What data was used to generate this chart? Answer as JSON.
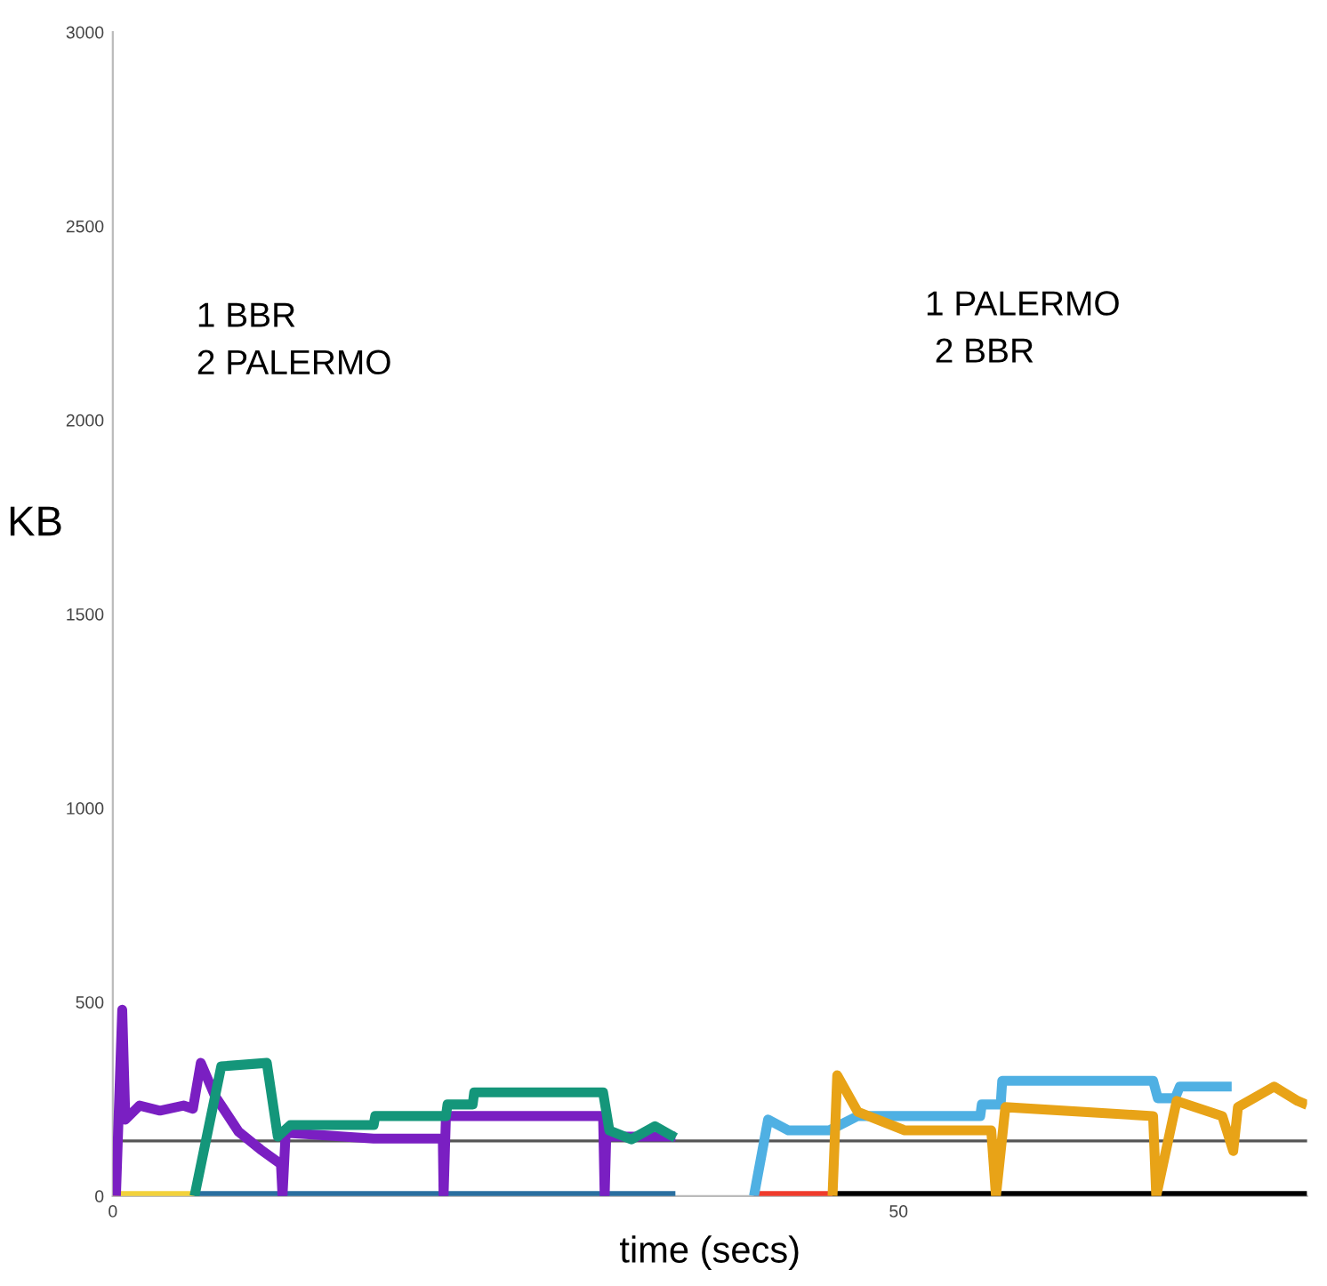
{
  "chart_data": {
    "type": "line",
    "xlabel": "time (secs)",
    "ylabel": "KB",
    "xlim": [
      0,
      76
    ],
    "xticks": [
      0,
      50
    ],
    "ylim": [
      0,
      3000
    ],
    "yticks": [
      0,
      500,
      1000,
      1500,
      2000,
      2500,
      3000
    ],
    "grid": false,
    "marker": "none",
    "line_style": "solid",
    "annotations": [
      "1 BBR\n2 PALERMO",
      "1 PALERMO\n 2 BBR"
    ],
    "ref_lines": [
      {
        "axis": "y",
        "value": 142,
        "color": "#555555"
      }
    ],
    "series": [
      {
        "color": "#f2d23c",
        "x": [
          0,
          5.2
        ],
        "values": [
          0,
          0
        ]
      },
      {
        "color": "#2a6fa0",
        "x": [
          5.2,
          35.8
        ],
        "values": [
          0,
          0
        ]
      },
      {
        "color": "#ef3b2c",
        "x": [
          40.8,
          45.8
        ],
        "values": [
          0,
          0
        ]
      },
      {
        "color": "#000000",
        "x": [
          45.8,
          76
        ],
        "values": [
          0,
          0
        ]
      },
      {
        "color": "#7a1fc2",
        "x": [
          0.2,
          0.6,
          0.8,
          1.7,
          3,
          4.5,
          5.1,
          5.6,
          6.5,
          8,
          9.4,
          10.7,
          10.8,
          11,
          16.6,
          21,
          21.05,
          21.2,
          31.2,
          31.3,
          31.4,
          35.8
        ],
        "values": [
          0,
          480,
          197,
          233,
          220,
          233,
          225,
          343,
          258,
          166,
          120,
          82,
          0,
          163,
          148,
          148,
          0,
          206,
          206,
          0,
          153,
          153
        ]
      },
      {
        "color": "#14967a",
        "x": [
          5.2,
          6.9,
          9.8,
          10.5,
          11.3,
          16.6,
          16.7,
          21.2,
          21.3,
          22.9,
          23,
          31.2,
          31.6,
          33,
          34.5,
          35.8
        ],
        "values": [
          0,
          334,
          343,
          153,
          183,
          183,
          206,
          206,
          236,
          236,
          267,
          267,
          169,
          146,
          180,
          150
        ]
      },
      {
        "color": "#4fb0e3",
        "x": [
          40.8,
          41.7,
          43,
          45.6,
          47.4,
          55.2,
          55.3,
          56.5,
          56.6,
          66.2,
          66.5,
          67.6,
          67.9,
          71.2
        ],
        "values": [
          0,
          197,
          169,
          169,
          206,
          206,
          236,
          236,
          297,
          297,
          252,
          252,
          282,
          282
        ]
      },
      {
        "color": "#e8a317",
        "x": [
          45.8,
          46.1,
          47.4,
          50.4,
          55.9,
          56.2,
          56.8,
          66.2,
          66.4,
          67.7,
          70.6,
          71.3,
          71.6,
          73.9,
          75.4,
          76
        ],
        "values": [
          0,
          311,
          217,
          169,
          169,
          0,
          229,
          206,
          0,
          245,
          206,
          116,
          229,
          282,
          245,
          235
        ]
      }
    ]
  }
}
